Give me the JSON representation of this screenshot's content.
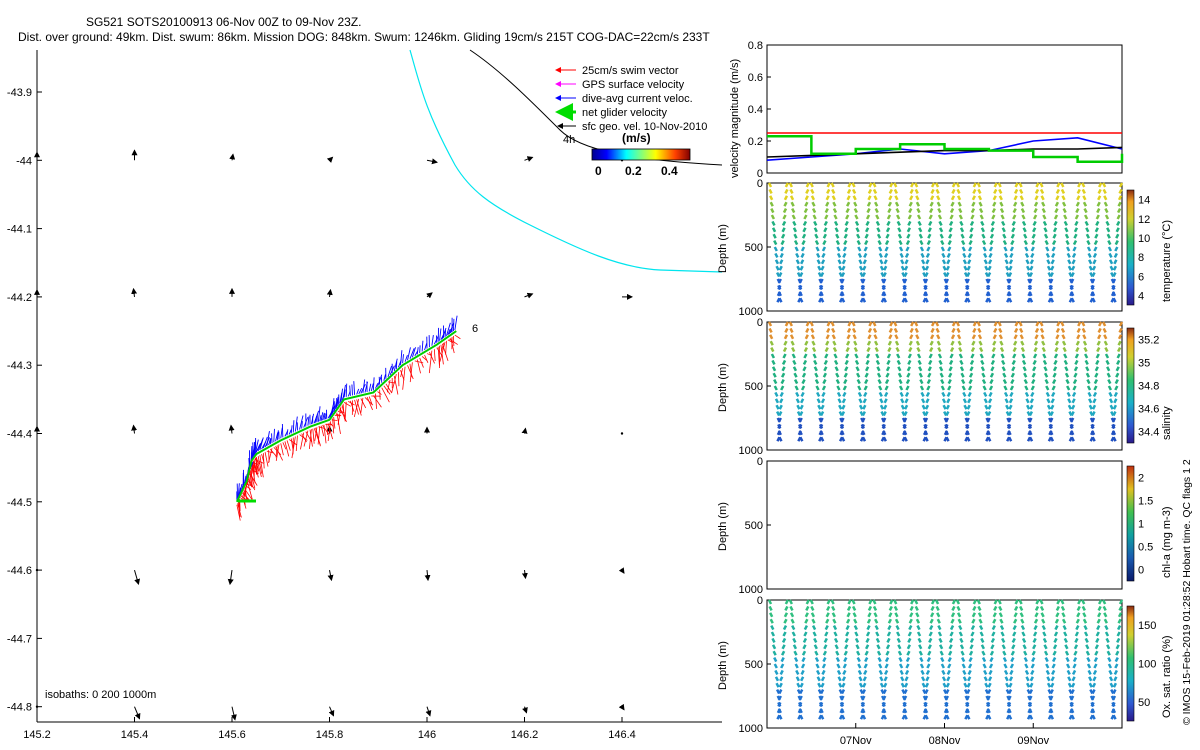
{
  "header": {
    "line1": "SG521 SOTS20100913 06-Nov 00Z to 09-Nov 23Z.",
    "line2": "Dist. over ground: 49km. Dist. swum: 86km. Mission DOG: 848km. Swum: 1246km. Gliding 19cm/s 215T COG-DAC=22cm/s 233T"
  },
  "side_note": "© IMOS 15-Feb-2019 01:28:52 Hobart time. QC flags 1  2",
  "map": {
    "xticks": [
      "145.2",
      "145.4",
      "145.6",
      "145.8",
      "146",
      "146.2",
      "146.4"
    ],
    "yticks": [
      "-43.9",
      "-44",
      "-44.1",
      "-44.2",
      "-44.3",
      "-44.4",
      "-44.5",
      "-44.6",
      "-44.7",
      "-44.8"
    ],
    "isobath_label": "isobaths: 0   200  1000m",
    "isobath_mark": "4h",
    "end_label": "6",
    "legend": [
      {
        "label": "25cm/s swim vector",
        "color": "#ff0000"
      },
      {
        "label": "GPS surface velocity",
        "color": "#ff00ff"
      },
      {
        "label": "dive-avg current veloc.",
        "color": "#0000ff"
      },
      {
        "label": "net glider velocity",
        "color": "#00dd00"
      },
      {
        "label": "sfc geo. vel. 10-Nov-2010",
        "color": "#000000"
      }
    ],
    "colorbar_title": "(m/s)",
    "colorbar_ticks": [
      "0",
      "0.2",
      "0.4"
    ]
  },
  "velocity_panel": {
    "ylabel": "velocity magnitude (m/s)",
    "yticks": [
      "0",
      "0.2",
      "0.4",
      "0.6",
      "0.8"
    ]
  },
  "depth_panels": [
    {
      "ylabel": "Depth (m)",
      "yticks": [
        "0",
        "500",
        "1000"
      ],
      "cblabel": "temperature (°C)",
      "cbticks": [
        "4",
        "6",
        "8",
        "10",
        "12",
        "14"
      ]
    },
    {
      "ylabel": "Depth (m)",
      "yticks": [
        "0",
        "500",
        "1000"
      ],
      "cblabel": "salinity",
      "cbticks": [
        "34.4",
        "34.6",
        "34.8",
        "35",
        "35.2"
      ]
    },
    {
      "ylabel": "Depth (m)",
      "yticks": [
        "0",
        "500",
        "1000"
      ],
      "cblabel": "chl-a (mg m-3)",
      "cbticks": [
        "0",
        "0.5",
        "1",
        "1.5",
        "2"
      ]
    },
    {
      "ylabel": "Depth (m)",
      "yticks": [
        "0",
        "500",
        "1000"
      ],
      "cblabel": "Ox. sat. ratio (%)",
      "cbticks": [
        "50",
        "100",
        "150"
      ]
    }
  ],
  "time_ticks": [
    "07Nov",
    "08Nov",
    "09Nov"
  ],
  "chart_data": [
    {
      "type": "scatter",
      "title": "SG521 SOTS20100913 06-Nov 00Z to 09-Nov 23Z.",
      "xlim": [
        145.2,
        146.6
      ],
      "ylim": [
        -44.82,
        -43.84
      ],
      "glider_track": {
        "lon": [
          145.61,
          145.63,
          145.64,
          145.65,
          145.7,
          145.76,
          145.8,
          145.83,
          145.89,
          145.95,
          146.02,
          146.06
        ],
        "lat": [
          -44.5,
          -44.47,
          -44.44,
          -44.43,
          -44.41,
          -44.39,
          -44.38,
          -44.35,
          -44.34,
          -44.3,
          -44.27,
          -44.25
        ]
      }
    },
    {
      "type": "line",
      "xlabel": "",
      "ylabel": "velocity magnitude (m/s)",
      "xlim": [
        6.0,
        10.0
      ],
      "ylim": [
        0,
        0.8
      ],
      "x": [
        6.0,
        6.5,
        7.0,
        7.5,
        8.0,
        8.5,
        9.0,
        9.5,
        10.0
      ],
      "series": [
        {
          "color": "#ff0000",
          "values": [
            0.25,
            0.25,
            0.25,
            0.25,
            0.25,
            0.25,
            0.25,
            0.25,
            0.25
          ]
        },
        {
          "color": "#0000ff",
          "values": [
            0.08,
            0.1,
            0.12,
            0.15,
            0.12,
            0.14,
            0.2,
            0.22,
            0.15
          ]
        },
        {
          "color": "#000000",
          "values": [
            0.1,
            0.11,
            0.12,
            0.13,
            0.14,
            0.14,
            0.15,
            0.15,
            0.16
          ]
        },
        {
          "color": "#00cc00",
          "values": [
            0.23,
            0.12,
            0.15,
            0.18,
            0.15,
            0.14,
            0.1,
            0.07,
            0.12
          ]
        }
      ]
    },
    {
      "type": "scatter",
      "ylabel": "Depth (m)",
      "ylim": [
        1000,
        0
      ],
      "colorbar": "temperature (°C)",
      "clim": [
        4,
        15
      ],
      "dives": 17,
      "max_depth": 900
    },
    {
      "type": "scatter",
      "ylabel": "Depth (m)",
      "ylim": [
        1000,
        0
      ],
      "colorbar": "salinity",
      "clim": [
        34.3,
        35.2
      ],
      "dives": 17,
      "max_depth": 900
    },
    {
      "type": "scatter",
      "ylabel": "Depth (m)",
      "ylim": [
        1000,
        0
      ],
      "colorbar": "chl-a (mg m-3)",
      "clim": [
        0,
        2
      ],
      "dives": 0,
      "max_depth": 0
    },
    {
      "type": "scatter",
      "ylabel": "Depth (m)",
      "ylim": [
        1000,
        0
      ],
      "colorbar": "Ox. sat. ratio (%)",
      "clim": [
        20,
        175
      ],
      "dives": 17,
      "max_depth": 900
    }
  ]
}
